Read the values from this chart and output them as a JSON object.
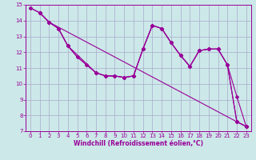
{
  "xlabel": "Windchill (Refroidissement éolien,°C)",
  "bg_color": "#cce8e8",
  "line_color": "#990099",
  "grid_color": "#aaaacc",
  "xlim": [
    -0.5,
    23.5
  ],
  "ylim": [
    7,
    15
  ],
  "xticks": [
    0,
    1,
    2,
    3,
    4,
    5,
    6,
    7,
    8,
    9,
    10,
    11,
    12,
    13,
    14,
    15,
    16,
    17,
    18,
    19,
    20,
    21,
    22,
    23
  ],
  "yticks": [
    7,
    8,
    9,
    10,
    11,
    12,
    13,
    14,
    15
  ],
  "lines": [
    {
      "x": [
        0,
        1,
        2,
        22,
        23
      ],
      "y": [
        14.8,
        14.5,
        13.9,
        7.6,
        7.3
      ]
    },
    {
      "x": [
        1,
        2,
        3,
        4,
        7,
        8,
        9,
        10,
        11,
        12,
        13,
        14,
        15,
        16,
        17,
        18,
        19,
        20,
        21,
        22,
        23
      ],
      "y": [
        14.5,
        13.9,
        13.5,
        12.4,
        10.7,
        10.5,
        10.5,
        10.4,
        10.5,
        12.2,
        13.7,
        13.5,
        12.6,
        11.8,
        11.1,
        12.1,
        12.2,
        12.2,
        11.2,
        7.6,
        7.3
      ]
    },
    {
      "x": [
        1,
        2,
        3,
        4,
        5,
        6,
        7,
        8,
        9,
        10,
        11,
        12,
        13,
        14,
        15,
        16,
        17,
        18,
        19,
        20,
        21,
        22,
        23
      ],
      "y": [
        14.5,
        13.9,
        13.5,
        12.4,
        11.7,
        11.2,
        10.7,
        10.5,
        10.5,
        10.4,
        10.5,
        12.2,
        13.7,
        13.5,
        12.6,
        11.8,
        11.1,
        12.1,
        12.2,
        12.2,
        11.2,
        7.6,
        7.3
      ]
    },
    {
      "x": [
        0,
        1,
        2,
        3,
        4,
        5,
        6,
        7,
        8,
        9,
        10,
        11,
        12,
        13,
        14,
        15,
        16,
        17,
        18,
        19,
        20,
        21,
        22,
        23
      ],
      "y": [
        14.8,
        14.5,
        13.9,
        13.5,
        12.4,
        11.7,
        11.2,
        10.7,
        10.5,
        10.5,
        10.4,
        10.5,
        12.2,
        13.7,
        13.5,
        12.6,
        11.8,
        11.1,
        12.1,
        12.2,
        12.2,
        11.2,
        9.2,
        7.3
      ]
    }
  ],
  "marker_size": 2.5,
  "tick_fontsize": 5,
  "xlabel_fontsize": 5.5
}
